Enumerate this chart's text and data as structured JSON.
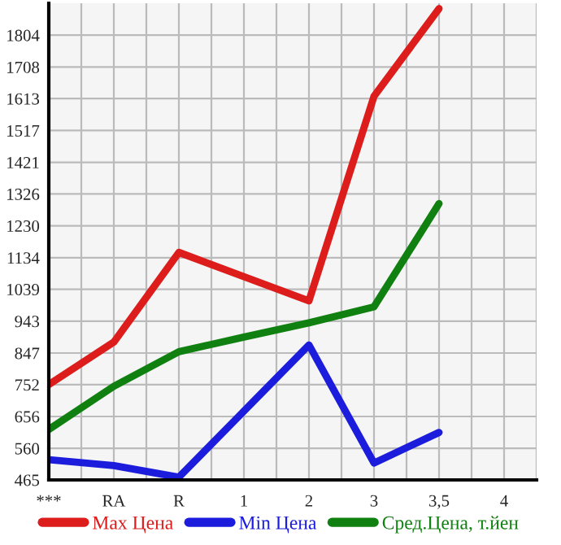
{
  "chart_data": {
    "type": "line",
    "categories": [
      "***",
      "RA",
      "R",
      "1",
      "2",
      "3",
      "3,5",
      "4"
    ],
    "series": [
      {
        "name": "Max Цена",
        "color": "#dd1c1c",
        "values": [
          752,
          880,
          1150,
          1077,
          1004,
          1620,
          1884,
          null
        ]
      },
      {
        "name": "Min Цена",
        "color": "#1c1cdd",
        "values": [
          526,
          508,
          473,
          672,
          871,
          516,
          608,
          null
        ]
      },
      {
        "name": "Сред.Цена, т.йен",
        "color": "#108010",
        "values": [
          617,
          747,
          851,
          895,
          938,
          986,
          1297,
          null
        ]
      }
    ],
    "ylim": [
      465,
      1900
    ],
    "yticks": [
      465,
      560,
      656,
      752,
      847,
      943,
      1039,
      1134,
      1230,
      1326,
      1421,
      1517,
      1613,
      1708,
      1804
    ],
    "grid": true,
    "legend": "bottom",
    "marker": "none",
    "line_style": "solid"
  }
}
